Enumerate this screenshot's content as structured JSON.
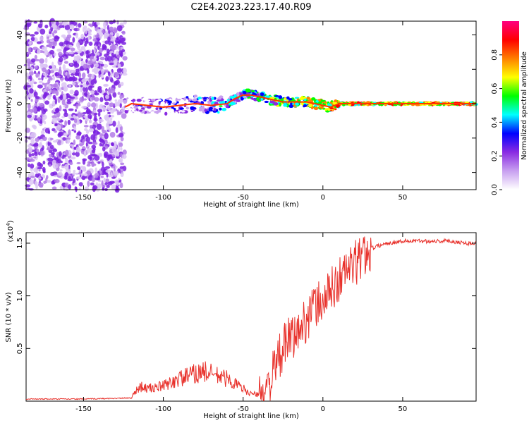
{
  "title": "C2E4.2023.223.17.40.R09",
  "chart_data": [
    {
      "type": "heatmap",
      "xlabel": "Height of straight line (km)",
      "ylabel": "Frequency (Hz)",
      "xlim": [
        -186,
        96
      ],
      "ylim": [
        -50,
        48
      ],
      "xticks": [
        -150,
        -100,
        -50,
        0,
        50
      ],
      "yticks": [
        -40,
        -20,
        0,
        20,
        40
      ],
      "colorbar": {
        "label": "Normalized spectral amplitude",
        "range": [
          0,
          1
        ],
        "ticks": [
          0.0,
          0.2,
          0.4,
          0.6,
          0.8
        ],
        "colors": [
          "#ffffff",
          "#c8a0f0",
          "#8a2be2",
          "#0000ff",
          "#00ffff",
          "#00ff00",
          "#ffff00",
          "#ff8000",
          "#ff0000",
          "#ff0080"
        ]
      },
      "noise_region": {
        "x": [
          -186,
          -124
        ],
        "freq_range": [
          -50,
          48
        ]
      },
      "ridge": {
        "x": [
          -124,
          -120,
          -110,
          -100,
          -90,
          -80,
          -70,
          -60,
          -55,
          -50,
          -45,
          -40,
          -35,
          -30,
          -25,
          -20,
          -15,
          -10,
          -5,
          0,
          5,
          10,
          20,
          40,
          60,
          80,
          96
        ],
        "freq": [
          -2,
          0,
          -1,
          -2,
          -1,
          0,
          -1,
          0,
          3,
          5,
          5,
          4,
          3,
          2,
          1,
          1,
          1,
          1,
          0,
          -1,
          -2,
          0,
          0,
          0,
          0,
          0,
          0
        ],
        "amplitude": [
          0.25,
          0.3,
          0.3,
          0.35,
          0.35,
          0.4,
          0.45,
          0.55,
          0.5,
          0.55,
          0.6,
          0.6,
          0.65,
          0.7,
          0.75,
          0.75,
          0.8,
          0.8,
          0.85,
          0.85,
          0.9,
          0.9,
          0.9,
          0.9,
          0.9,
          0.9,
          0.9
        ]
      }
    },
    {
      "type": "line",
      "xlabel": "Height of straight line (km)",
      "ylabel": "SNR (10 * v/v)",
      "y_multiplier": "(x10",
      "y_multiplier_exp": "4",
      "y_multiplier_close": ")",
      "xlim": [
        -186,
        96
      ],
      "ylim": [
        0,
        1.6
      ],
      "xticks": [
        -150,
        -100,
        -50,
        0,
        50
      ],
      "yticks": [
        0.5,
        1.0,
        1.5
      ],
      "ytick_labels": [
        "0.5",
        "1.0",
        "1.5"
      ],
      "color": "#e8312b",
      "series": [
        {
          "x": [
            -186,
            -150,
            -120,
            -115,
            -110,
            -100,
            -90,
            -80,
            -75,
            -70,
            -60,
            -50,
            -45,
            -40,
            -35,
            -30,
            -25,
            -20,
            -15,
            -10,
            -5,
            0,
            5,
            10,
            15,
            20,
            25,
            30,
            40,
            50,
            60,
            70,
            80,
            90,
            96
          ],
          "y": [
            0.02,
            0.02,
            0.03,
            0.12,
            0.1,
            0.12,
            0.18,
            0.22,
            0.24,
            0.22,
            0.18,
            0.1,
            0.06,
            0.05,
            0.12,
            0.3,
            0.5,
            0.6,
            0.65,
            0.8,
            0.9,
            0.95,
            1.05,
            1.15,
            1.25,
            1.3,
            1.38,
            1.45,
            1.5,
            1.52,
            1.52,
            1.52,
            1.52,
            1.5,
            1.5
          ]
        }
      ]
    }
  ]
}
